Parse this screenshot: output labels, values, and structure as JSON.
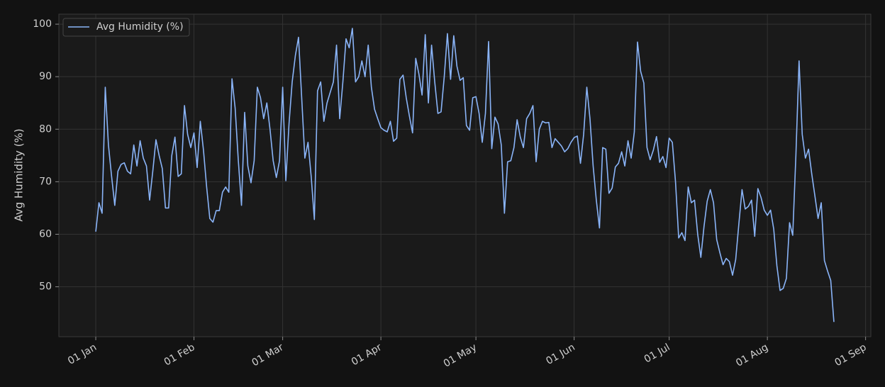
{
  "chart_data": {
    "type": "line",
    "ylabel": "Avg Humidity (%)",
    "x": [
      0,
      1,
      2,
      3,
      4,
      5,
      6,
      7,
      8,
      9,
      10,
      11,
      12,
      13,
      14,
      15,
      16,
      17,
      18,
      19,
      20,
      21,
      22,
      23,
      24,
      25,
      26,
      27,
      28,
      29,
      30,
      31,
      32,
      33,
      34,
      35,
      36,
      37,
      38,
      39,
      40,
      41,
      42,
      43,
      44,
      45,
      46,
      47,
      48,
      49,
      50,
      51,
      52,
      53,
      54,
      55,
      56,
      57,
      58,
      59,
      60,
      61,
      62,
      63,
      64,
      65,
      66,
      67,
      68,
      69,
      70,
      71,
      72,
      73,
      74,
      75,
      76,
      77,
      78,
      79,
      80,
      81,
      82,
      83,
      84,
      85,
      86,
      87,
      88,
      89,
      90,
      91,
      92,
      93,
      94,
      95,
      96,
      97,
      98,
      99,
      100,
      101,
      102,
      103,
      104,
      105,
      106,
      107,
      108,
      109,
      110,
      111,
      112,
      113,
      114,
      115,
      116,
      117,
      118,
      119,
      120,
      121,
      122,
      123,
      124,
      125,
      126,
      127,
      128,
      129,
      130,
      131,
      132,
      133,
      134,
      135,
      136,
      137,
      138,
      139,
      140,
      141,
      142,
      143,
      144,
      145,
      146,
      147,
      148,
      149,
      150,
      151,
      152,
      153,
      154,
      155,
      156,
      157,
      158,
      159,
      160,
      161,
      162,
      163,
      164,
      165,
      166,
      167,
      168,
      169,
      170,
      171,
      172,
      173,
      174,
      175,
      176,
      177,
      178,
      179,
      180,
      181,
      182,
      183,
      184,
      185,
      186,
      187,
      188,
      189,
      190,
      191,
      192,
      193,
      194,
      195,
      196,
      197,
      198,
      199,
      200,
      201,
      202,
      203,
      204,
      205,
      206,
      207,
      208,
      209,
      210,
      211,
      212,
      213,
      214,
      215,
      216,
      217,
      218,
      219,
      220,
      221,
      222,
      223,
      224,
      225,
      226,
      227,
      228,
      229,
      230,
      231,
      232,
      233
    ],
    "series": [
      {
        "name": "Avg Humidity (%)",
        "color": "#8ab4f8",
        "values": [
          60.5,
          66,
          64,
          88,
          77,
          71,
          65.5,
          72,
          73.3,
          73.6,
          72,
          71.5,
          77,
          73,
          77.8,
          74.5,
          73,
          66.5,
          72,
          78,
          75,
          72.5,
          65,
          65,
          75,
          78.5,
          71,
          71.5,
          84.5,
          79,
          76.5,
          79.3,
          72.7,
          81.5,
          76,
          69,
          63,
          62.3,
          64.5,
          64.5,
          68,
          69,
          68,
          89.6,
          84,
          74,
          65.5,
          83.2,
          73,
          69.8,
          74,
          88,
          86,
          82,
          85,
          80,
          74,
          70.8,
          74,
          88,
          70.2,
          81,
          89,
          94,
          97.5,
          86,
          74.5,
          77.5,
          71,
          62.8,
          87.3,
          89,
          81.5,
          85,
          87,
          89,
          96,
          82,
          89,
          97.2,
          95.5,
          99.2,
          89,
          90,
          93,
          90,
          96,
          88,
          83.8,
          82,
          80.3,
          79.8,
          79.5,
          81.5,
          77.7,
          78.3,
          89.5,
          90.3,
          86,
          82.5,
          79.3,
          93.5,
          90.5,
          86.5,
          98,
          85,
          96,
          89,
          83,
          83.3,
          90,
          98.2,
          89.5,
          97.8,
          92,
          89.3,
          89.8,
          80.7,
          79.8,
          86,
          86.2,
          83,
          77.5,
          83,
          96.7,
          76.3,
          82.3,
          81,
          77,
          64,
          73.8,
          74,
          76.5,
          81.8,
          78.5,
          76.5,
          82,
          83,
          84.5,
          73.8,
          80,
          81.5,
          81.2,
          81.3,
          76.5,
          78.2,
          77.5,
          76.8,
          75.7,
          76.3,
          77.5,
          78.4,
          78.7,
          73.5,
          79,
          88,
          82,
          73,
          66.5,
          61.2,
          76.5,
          76.2,
          67.8,
          68.8,
          72.8,
          73.5,
          75.7,
          73,
          77.8,
          74.5,
          79.5,
          96.6,
          91,
          88.8,
          76.5,
          74.2,
          76,
          78.6,
          73.7,
          74.8,
          72.7,
          78.3,
          77.5,
          70,
          59.3,
          60.3,
          58.8,
          69,
          66,
          66.5,
          60,
          55.6,
          61.5,
          66.3,
          68.5,
          66,
          59,
          56.5,
          54.2,
          55.4,
          54.8,
          52.2,
          55.2,
          62,
          68.5,
          64.8,
          65.3,
          66.5,
          59.6,
          68.7,
          67,
          64.6,
          63.6,
          64.6,
          61,
          54,
          49.3,
          49.7,
          51.6,
          62.2,
          59.8,
          75,
          93,
          79,
          74.5,
          76.2,
          71.5,
          67.3,
          63,
          66,
          55,
          53,
          51.2,
          43.3
        ]
      }
    ],
    "xlim": [
      -11.65,
      244.65
    ],
    "xticks": [
      {
        "value": 0,
        "label": "01 Jan"
      },
      {
        "value": 31,
        "label": "01 Feb"
      },
      {
        "value": 59,
        "label": "01 Mar"
      },
      {
        "value": 90,
        "label": "01 Apr"
      },
      {
        "value": 120,
        "label": "01 May"
      },
      {
        "value": 151,
        "label": "01 Jun"
      },
      {
        "value": 181,
        "label": "01 Jul"
      },
      {
        "value": 212,
        "label": "01 Aug"
      },
      {
        "value": 243,
        "label": "01 Sep"
      }
    ],
    "ylim": [
      40.5,
      101.9
    ],
    "yticks": [
      50,
      60,
      70,
      80,
      90,
      100
    ],
    "grid": true,
    "legend": "upper-left"
  }
}
